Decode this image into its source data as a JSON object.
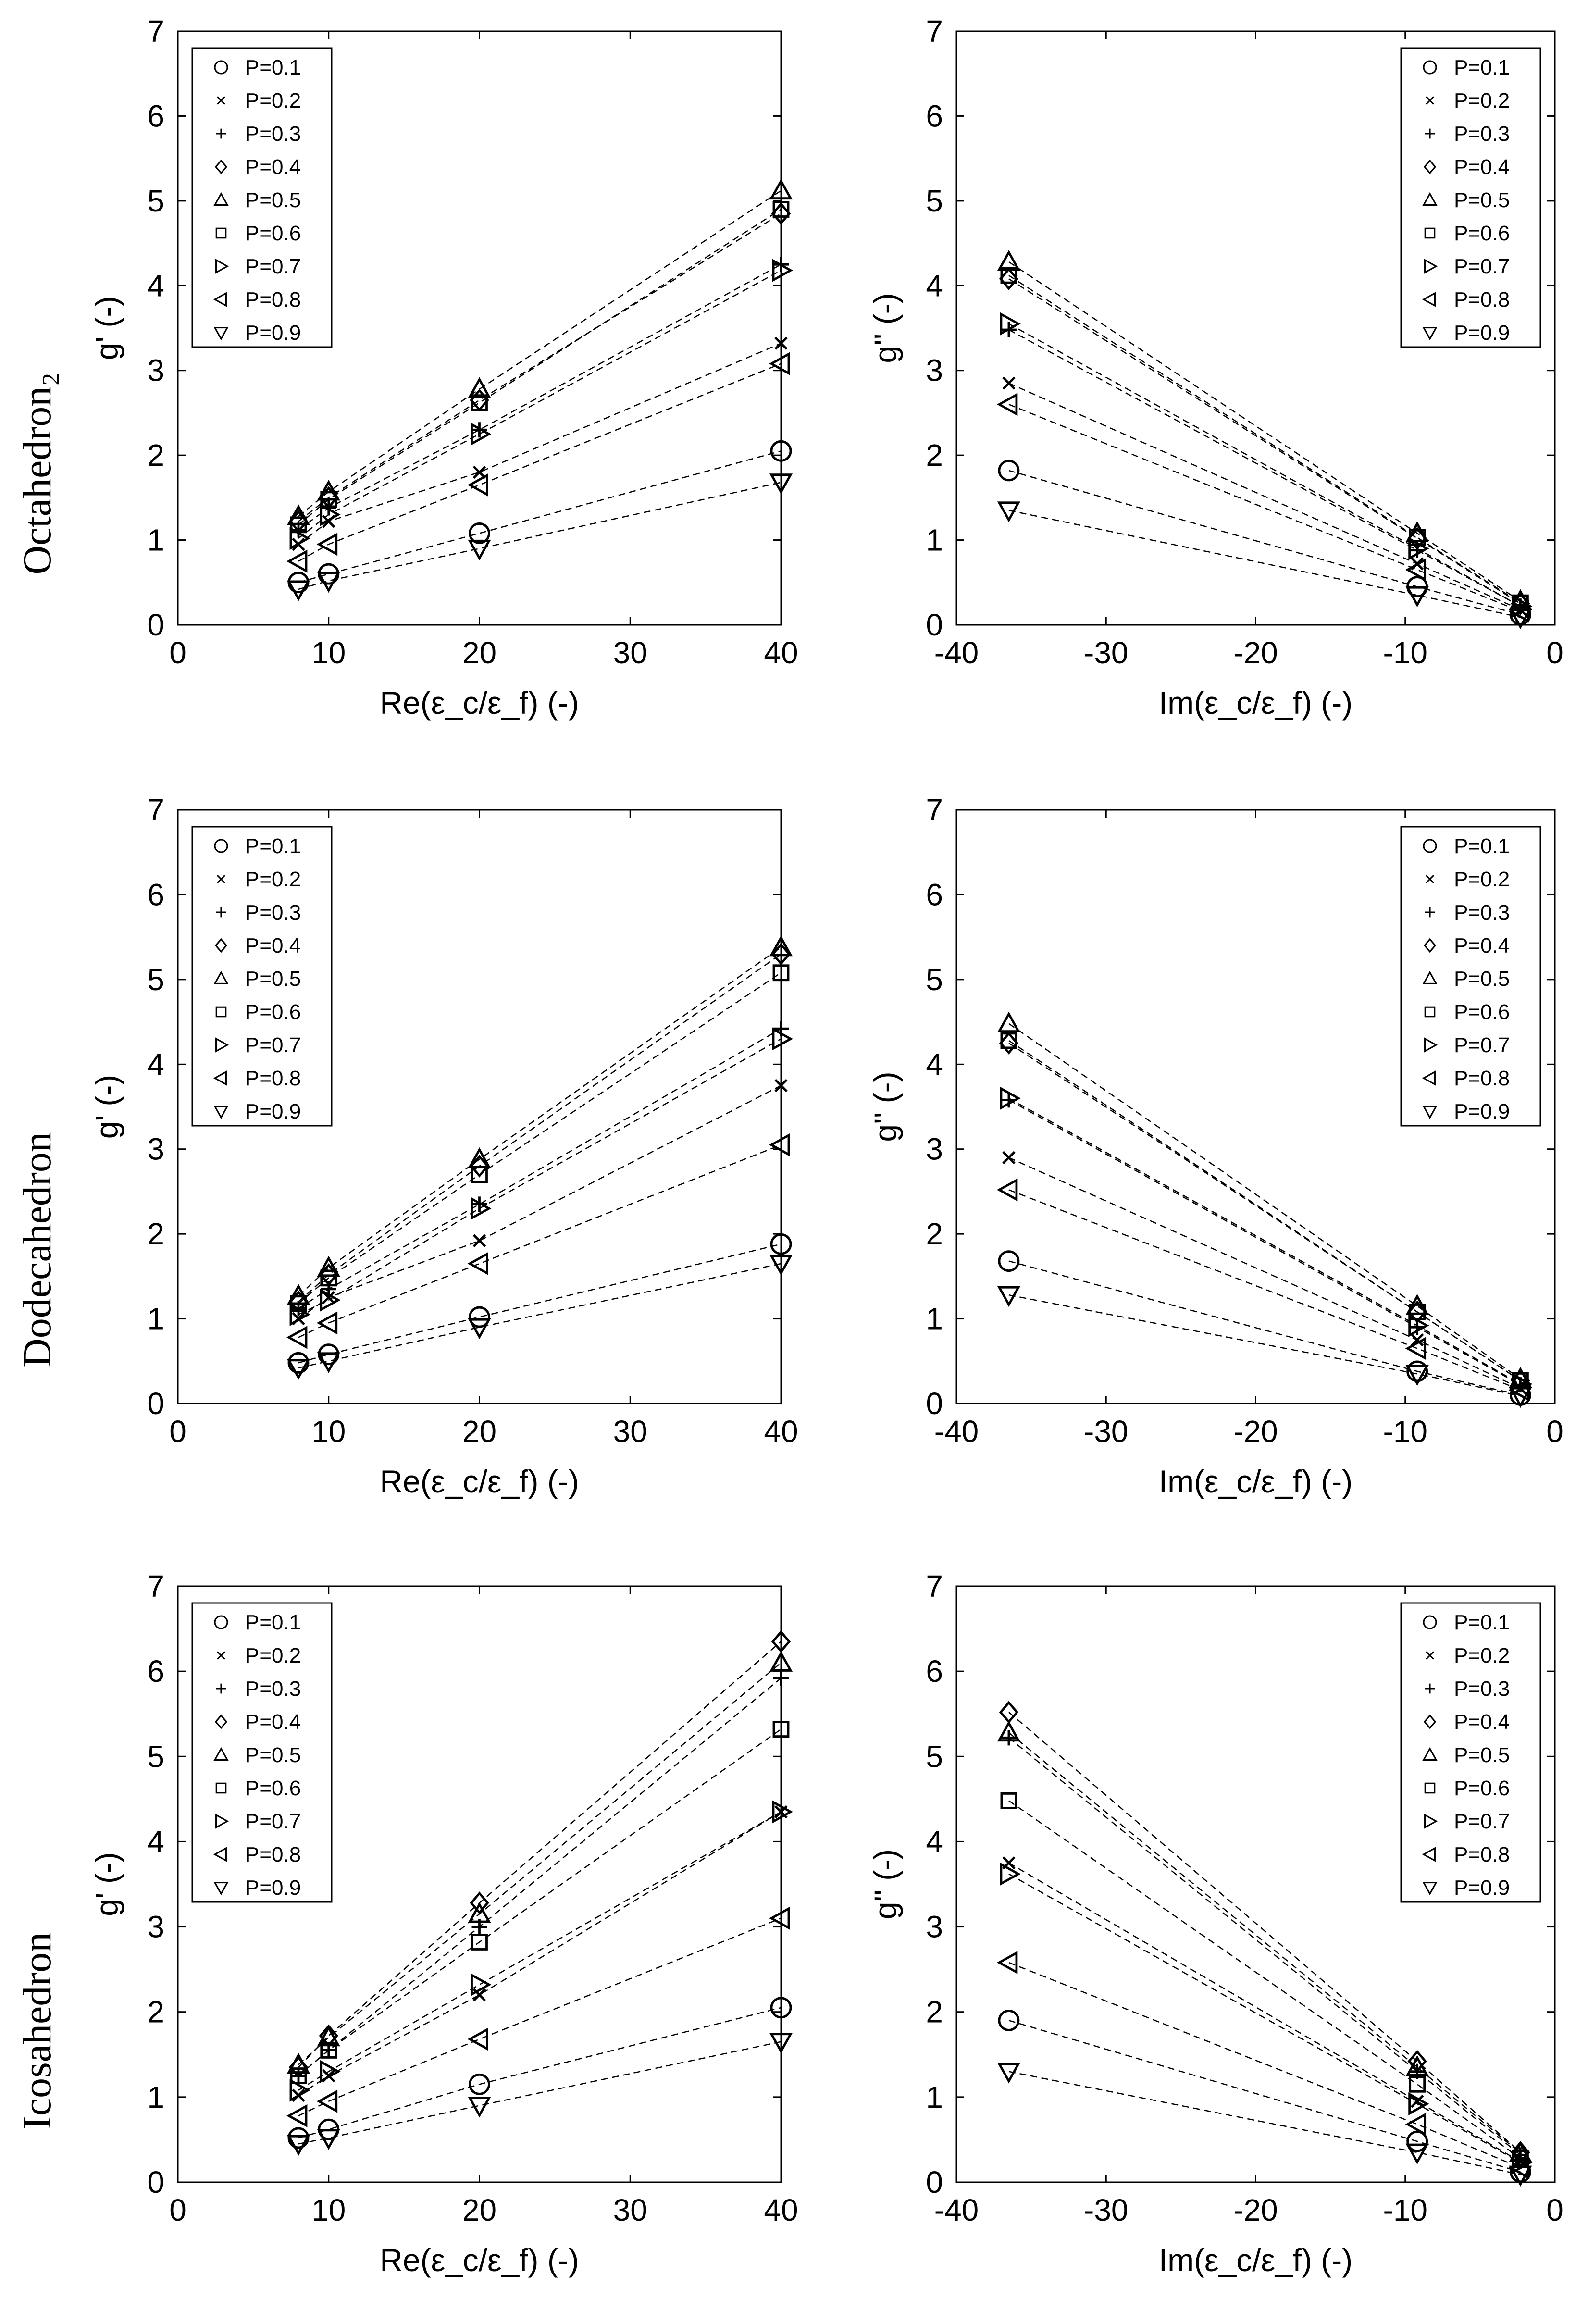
{
  "row_labels": [
    "Octahedron₂",
    "Dodecahedron",
    "Icosahedron"
  ],
  "marker_icons": [
    "circle-icon",
    "x-icon",
    "plus-icon",
    "diamond-icon",
    "triangle-up-icon",
    "square-icon",
    "triangle-right-icon",
    "triangle-left-icon",
    "triangle-down-icon"
  ],
  "chart_data": [
    {
      "type": "line",
      "panel": "octahedron-real",
      "title": "",
      "xlabel": "Re(ε_c/ε_f) (-)",
      "ylabel": "g' (-)",
      "xlim": [
        0,
        40
      ],
      "ylim": [
        0,
        7
      ],
      "xticks": [
        0,
        10,
        20,
        30,
        40
      ],
      "yticks": [
        0,
        1,
        2,
        3,
        4,
        5,
        6,
        7
      ],
      "legend_position": "top-left",
      "x": [
        8,
        10,
        20,
        40
      ],
      "series": [
        {
          "name": "P=0.1",
          "values": [
            0.5,
            0.6,
            1.08,
            2.05
          ]
        },
        {
          "name": "P=0.2",
          "values": [
            0.95,
            1.22,
            1.8,
            3.32
          ]
        },
        {
          "name": "P=0.3",
          "values": [
            1.12,
            1.38,
            2.3,
            4.25
          ]
        },
        {
          "name": "P=0.4",
          "values": [
            1.22,
            1.5,
            2.65,
            4.85
          ]
        },
        {
          "name": "P=0.5",
          "values": [
            1.28,
            1.57,
            2.78,
            5.12
          ]
        },
        {
          "name": "P=0.6",
          "values": [
            1.18,
            1.48,
            2.62,
            4.9
          ]
        },
        {
          "name": "P=0.7",
          "values": [
            1.02,
            1.3,
            2.25,
            4.18
          ]
        },
        {
          "name": "P=0.8",
          "values": [
            0.75,
            0.95,
            1.65,
            3.08
          ]
        },
        {
          "name": "P=0.9",
          "values": [
            0.42,
            0.52,
            0.9,
            1.68
          ]
        }
      ]
    },
    {
      "type": "line",
      "panel": "octahedron-imag",
      "title": "",
      "xlabel": "Im(ε_c/ε_f) (-)",
      "ylabel": "g'' (-)",
      "xlim": [
        -40,
        0
      ],
      "ylim": [
        0,
        7
      ],
      "xticks": [
        -40,
        -30,
        -20,
        -10,
        0
      ],
      "yticks": [
        0,
        1,
        2,
        3,
        4,
        5,
        6,
        7
      ],
      "legend_position": "top-right",
      "x": [
        -36.5,
        -9.2,
        -2.3
      ],
      "series": [
        {
          "name": "P=0.1",
          "values": [
            1.82,
            0.45,
            0.12
          ]
        },
        {
          "name": "P=0.2",
          "values": [
            2.85,
            0.72,
            0.18
          ]
        },
        {
          "name": "P=0.3",
          "values": [
            3.48,
            0.88,
            0.22
          ]
        },
        {
          "name": "P=0.4",
          "values": [
            4.08,
            1.02,
            0.25
          ]
        },
        {
          "name": "P=0.5",
          "values": [
            4.28,
            1.08,
            0.28
          ]
        },
        {
          "name": "P=0.6",
          "values": [
            4.12,
            1.03,
            0.26
          ]
        },
        {
          "name": "P=0.7",
          "values": [
            3.55,
            0.9,
            0.22
          ]
        },
        {
          "name": "P=0.8",
          "values": [
            2.6,
            0.65,
            0.16
          ]
        },
        {
          "name": "P=0.9",
          "values": [
            1.35,
            0.35,
            0.09
          ]
        }
      ]
    },
    {
      "type": "line",
      "panel": "dodecahedron-real",
      "title": "",
      "xlabel": "Re(ε_c/ε_f) (-)",
      "ylabel": "g' (-)",
      "xlim": [
        0,
        40
      ],
      "ylim": [
        0,
        7
      ],
      "xticks": [
        0,
        10,
        20,
        30,
        40
      ],
      "yticks": [
        0,
        1,
        2,
        3,
        4,
        5,
        6,
        7
      ],
      "legend_position": "top-left",
      "x": [
        8,
        10,
        20,
        40
      ],
      "series": [
        {
          "name": "P=0.1",
          "values": [
            0.48,
            0.58,
            1.02,
            1.88
          ]
        },
        {
          "name": "P=0.2",
          "values": [
            1.0,
            1.25,
            1.92,
            3.75
          ]
        },
        {
          "name": "P=0.3",
          "values": [
            1.12,
            1.35,
            2.35,
            4.42
          ]
        },
        {
          "name": "P=0.4",
          "values": [
            1.2,
            1.52,
            2.8,
            5.3
          ]
        },
        {
          "name": "P=0.5",
          "values": [
            1.27,
            1.6,
            2.88,
            5.38
          ]
        },
        {
          "name": "P=0.6",
          "values": [
            1.18,
            1.48,
            2.7,
            5.08
          ]
        },
        {
          "name": "P=0.7",
          "values": [
            1.05,
            1.22,
            2.3,
            4.3
          ]
        },
        {
          "name": "P=0.8",
          "values": [
            0.78,
            0.95,
            1.65,
            3.05
          ]
        },
        {
          "name": "P=0.9",
          "values": [
            0.42,
            0.5,
            0.9,
            1.65
          ]
        }
      ]
    },
    {
      "type": "line",
      "panel": "dodecahedron-imag",
      "title": "",
      "xlabel": "Im(ε_c/ε_f) (-)",
      "ylabel": "g'' (-)",
      "xlim": [
        -40,
        0
      ],
      "ylim": [
        0,
        7
      ],
      "xticks": [
        -40,
        -30,
        -20,
        -10,
        0
      ],
      "yticks": [
        0,
        1,
        2,
        3,
        4,
        5,
        6,
        7
      ],
      "legend_position": "top-right",
      "x": [
        -36.5,
        -9.2,
        -2.3
      ],
      "series": [
        {
          "name": "P=0.1",
          "values": [
            1.68,
            0.38,
            0.1
          ]
        },
        {
          "name": "P=0.2",
          "values": [
            2.9,
            0.75,
            0.18
          ]
        },
        {
          "name": "P=0.3",
          "values": [
            3.58,
            0.9,
            0.22
          ]
        },
        {
          "name": "P=0.4",
          "values": [
            4.25,
            1.08,
            0.27
          ]
        },
        {
          "name": "P=0.5",
          "values": [
            4.48,
            1.15,
            0.29
          ]
        },
        {
          "name": "P=0.6",
          "values": [
            4.28,
            1.08,
            0.27
          ]
        },
        {
          "name": "P=0.7",
          "values": [
            3.6,
            0.92,
            0.23
          ]
        },
        {
          "name": "P=0.8",
          "values": [
            2.52,
            0.65,
            0.16
          ]
        },
        {
          "name": "P=0.9",
          "values": [
            1.28,
            0.35,
            0.09
          ]
        }
      ]
    },
    {
      "type": "line",
      "panel": "icosahedron-real",
      "title": "",
      "xlabel": "Re(ε_c/ε_f) (-)",
      "ylabel": "g' (-)",
      "xlim": [
        0,
        40
      ],
      "ylim": [
        0,
        7
      ],
      "xticks": [
        0,
        10,
        20,
        30,
        40
      ],
      "yticks": [
        0,
        1,
        2,
        3,
        4,
        5,
        6,
        7
      ],
      "legend_position": "top-left",
      "x": [
        8,
        10,
        20,
        40
      ],
      "series": [
        {
          "name": "P=0.1",
          "values": [
            0.52,
            0.62,
            1.15,
            2.05
          ]
        },
        {
          "name": "P=0.2",
          "values": [
            1.02,
            1.25,
            2.2,
            4.35
          ]
        },
        {
          "name": "P=0.3",
          "values": [
            1.25,
            1.55,
            3.0,
            5.92
          ]
        },
        {
          "name": "P=0.4",
          "values": [
            1.35,
            1.72,
            3.28,
            6.35
          ]
        },
        {
          "name": "P=0.5",
          "values": [
            1.38,
            1.7,
            3.15,
            6.1
          ]
        },
        {
          "name": "P=0.6",
          "values": [
            1.25,
            1.55,
            2.82,
            5.32
          ]
        },
        {
          "name": "P=0.7",
          "values": [
            1.08,
            1.3,
            2.32,
            4.35
          ]
        },
        {
          "name": "P=0.8",
          "values": [
            0.78,
            0.95,
            1.68,
            3.1
          ]
        },
        {
          "name": "P=0.9",
          "values": [
            0.45,
            0.52,
            0.9,
            1.65
          ]
        }
      ]
    },
    {
      "type": "line",
      "panel": "icosahedron-imag",
      "title": "",
      "xlabel": "Im(ε_c/ε_f) (-)",
      "ylabel": "g'' (-)",
      "xlim": [
        -40,
        0
      ],
      "ylim": [
        0,
        7
      ],
      "xticks": [
        -40,
        -30,
        -20,
        -10,
        0
      ],
      "yticks": [
        0,
        1,
        2,
        3,
        4,
        5,
        6,
        7
      ],
      "legend_position": "top-right",
      "x": [
        -36.5,
        -9.2,
        -2.3
      ],
      "series": [
        {
          "name": "P=0.1",
          "values": [
            1.9,
            0.48,
            0.12
          ]
        },
        {
          "name": "P=0.2",
          "values": [
            3.75,
            0.95,
            0.24
          ]
        },
        {
          "name": "P=0.3",
          "values": [
            5.22,
            1.3,
            0.32
          ]
        },
        {
          "name": "P=0.4",
          "values": [
            5.52,
            1.42,
            0.35
          ]
        },
        {
          "name": "P=0.5",
          "values": [
            5.28,
            1.35,
            0.34
          ]
        },
        {
          "name": "P=0.6",
          "values": [
            4.48,
            1.15,
            0.28
          ]
        },
        {
          "name": "P=0.7",
          "values": [
            3.62,
            0.92,
            0.23
          ]
        },
        {
          "name": "P=0.8",
          "values": [
            2.58,
            0.68,
            0.17
          ]
        },
        {
          "name": "P=0.9",
          "values": [
            1.3,
            0.35,
            0.09
          ]
        }
      ]
    }
  ]
}
